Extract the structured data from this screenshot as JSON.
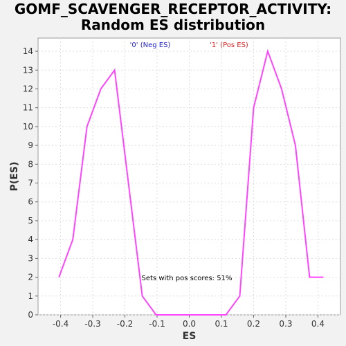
{
  "chart_data": {
    "type": "line",
    "title": [
      "GOMF_SCAVENGER_RECEPTOR_ACTIVITY:",
      "Random ES distribution"
    ],
    "xlabel": "ES",
    "ylabel": "P(ES)",
    "xlim": [
      -0.47,
      0.47
    ],
    "ylim": [
      0,
      14.7
    ],
    "xticks": [
      -0.4,
      -0.3,
      -0.2,
      -0.1,
      0.0,
      0.1,
      0.2,
      0.3,
      0.4
    ],
    "xtick_labels": [
      "-0.4",
      "-0.3",
      "-0.2",
      "-0.1",
      "0.0",
      "0.1",
      "0.2",
      "0.3",
      "0.4"
    ],
    "yticks": [
      0,
      1,
      2,
      3,
      4,
      5,
      6,
      7,
      8,
      9,
      10,
      11,
      12,
      13,
      14
    ],
    "grid": true,
    "series": [
      {
        "color": "#ff44ff",
        "x": [
          -0.405,
          -0.362,
          -0.318,
          -0.275,
          -0.232,
          -0.189,
          -0.146,
          -0.103,
          -0.059,
          -0.016,
          0.027,
          0.07,
          0.114,
          0.157,
          0.2,
          0.244,
          0.287,
          0.33,
          0.374,
          0.417
        ],
        "y": [
          2,
          4,
          10,
          12,
          13,
          7,
          1,
          0,
          0,
          0,
          0,
          0,
          0,
          1,
          11,
          14,
          12,
          9,
          2,
          2
        ]
      }
    ],
    "legend": [
      {
        "label": "'0' (Neg ES)",
        "color": "#2222cc"
      },
      {
        "label": "'1' (Pos ES)",
        "color": "#dd2222"
      }
    ],
    "annotation": "Sets with pos scores: 51%"
  }
}
